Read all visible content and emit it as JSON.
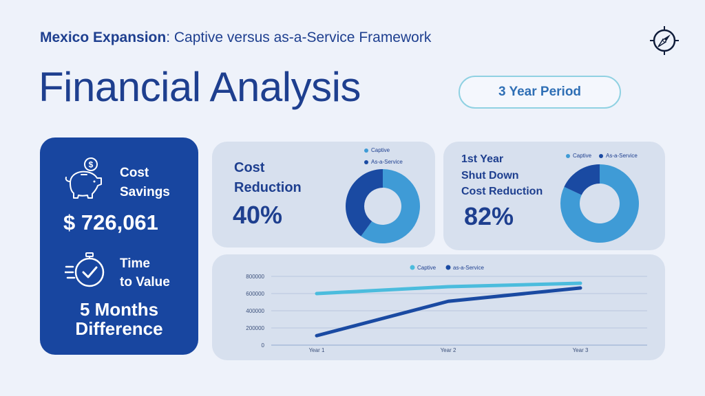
{
  "header": {
    "subtitle_bold": "Mexico Expansion",
    "subtitle_rest": ": Captive versus as-a-Service Framework",
    "title": "Financial Analysis",
    "period_label": "3 Year Period"
  },
  "left_card": {
    "savings_label_1": "Cost",
    "savings_label_2": "Savings",
    "savings_value": "$ 726,061",
    "time_label_1": "Time",
    "time_label_2": "to Value",
    "time_value_1": "5 Months",
    "time_value_2": "Difference"
  },
  "cost_reduction": {
    "label_1": "Cost",
    "label_2": "Reduction",
    "value": "40%",
    "legend": [
      "Captive",
      "As-a-Service"
    ],
    "chart_data": {
      "type": "pie",
      "donut": true,
      "labels": [
        "Captive",
        "As-a-Service"
      ],
      "values": [
        60,
        40
      ],
      "colors": [
        "#3f9bd6",
        "#1a4aa2"
      ]
    }
  },
  "shutdown": {
    "label_1": "1st Year",
    "label_2": "Shut Down",
    "label_3": "Cost Reduction",
    "value": "82%",
    "legend": [
      "Captive",
      "As-a-Service"
    ],
    "chart_data": {
      "type": "pie",
      "donut": true,
      "labels": [
        "Captive",
        "As-a-Service"
      ],
      "values": [
        82,
        18
      ],
      "colors": [
        "#3f9bd6",
        "#1a4aa2"
      ]
    }
  },
  "chart_data": {
    "type": "line",
    "categories": [
      "Year 1",
      "Year 2",
      "Year 3"
    ],
    "series": [
      {
        "name": "Captive",
        "values": [
          600000,
          680000,
          720000
        ],
        "color": "#4bbcdd"
      },
      {
        "name": "as-a-Service",
        "values": [
          110000,
          510000,
          665000
        ],
        "color": "#1a4aa2"
      }
    ],
    "ylim": [
      0,
      800000
    ],
    "yticks": [
      "0",
      "200000",
      "400000",
      "600000",
      "800000"
    ],
    "legend_position": "top-center",
    "grid": true
  }
}
